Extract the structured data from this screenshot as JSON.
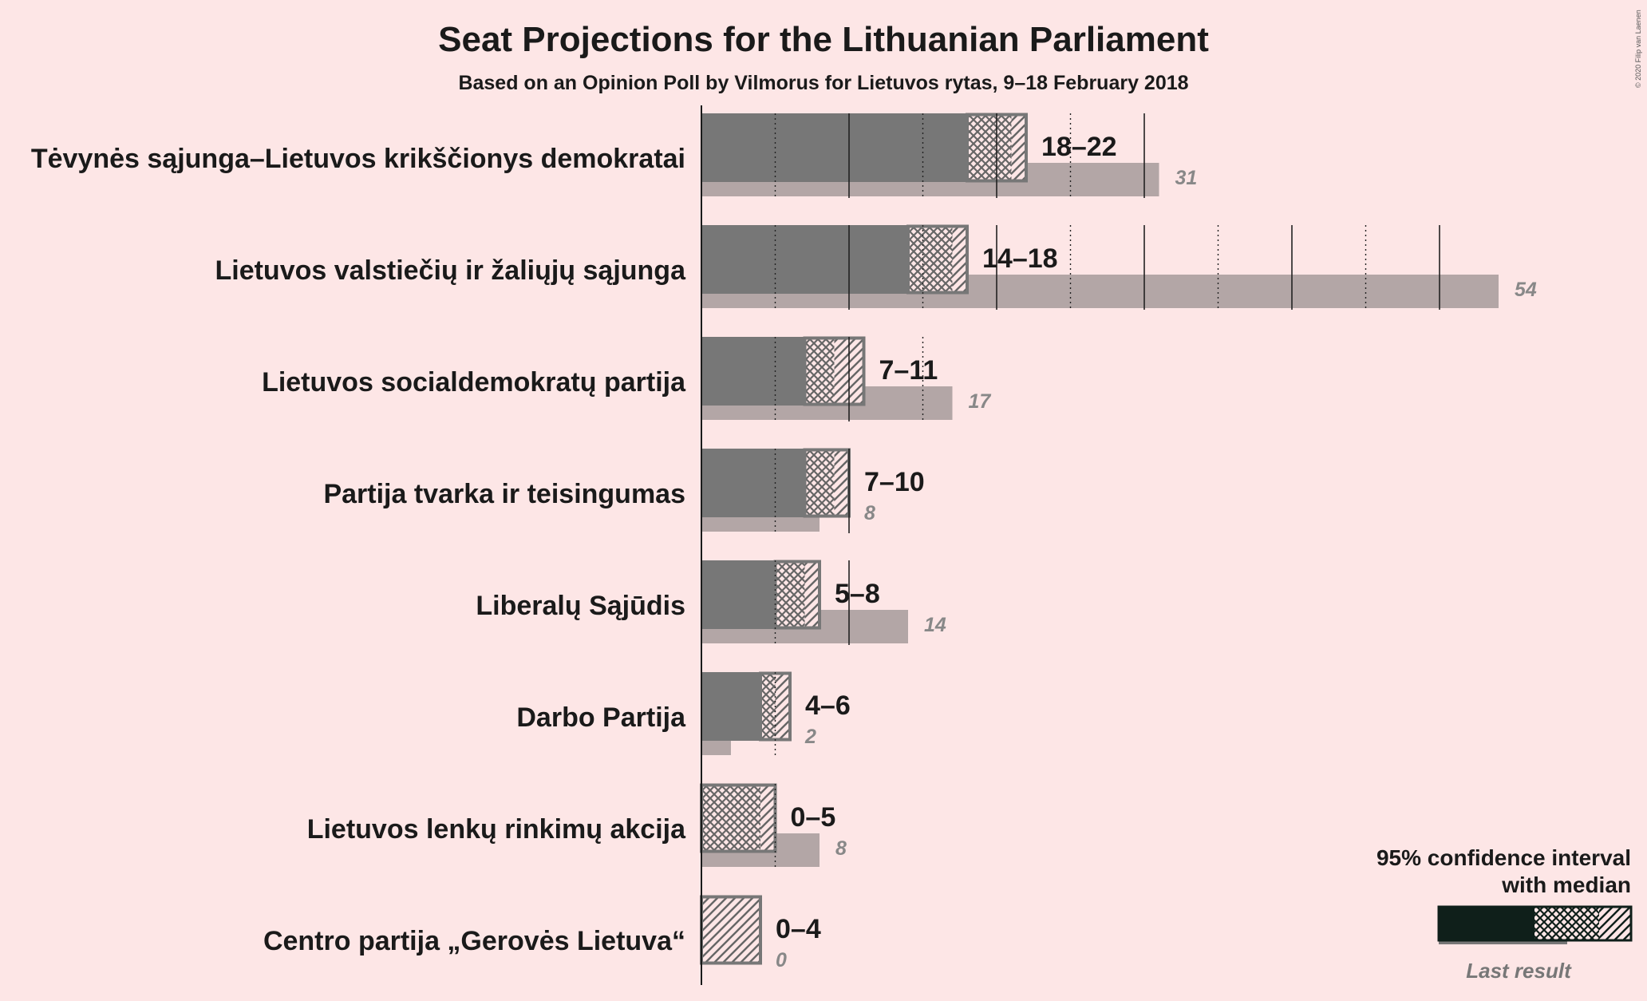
{
  "chart_data": {
    "type": "bar",
    "title": "Seat Projections for the Lithuanian Parliament",
    "subtitle": "Based on an Opinion Poll by Vilmorus for Lietuvos rytas, 9–18 February 2018",
    "copyright": "© 2020 Filip van Laenen",
    "categories": [
      "Tėvynės sąjunga–Lietuvos krikščionys demokratai",
      "Lietuvos valstiečių ir žaliųjų sąjunga",
      "Lietuvos socialdemokratų partija",
      "Partija tvarka ir teisingumas",
      "Liberalų Sąjūdis",
      "Darbo Partija",
      "Lietuvos lenkų rinkimų akcija",
      "Centro partija „Gerovės Lietuva“"
    ],
    "range_labels": [
      "18–22",
      "14–18",
      "7–11",
      "7–10",
      "5–8",
      "4–6",
      "0–5",
      "0–4"
    ],
    "ci_low": [
      18,
      14,
      7,
      7,
      5,
      4,
      0,
      0
    ],
    "median": [
      21,
      17,
      9,
      9,
      7,
      5,
      4,
      0
    ],
    "ci_high": [
      22,
      18,
      11,
      10,
      8,
      6,
      5,
      4
    ],
    "last_result": [
      31,
      54,
      17,
      8,
      14,
      2,
      8,
      0
    ],
    "gridline_step": 5,
    "colors": {
      "background": "#fde6e6",
      "bar": "#777777",
      "last_result": "#b3a6a6",
      "hatch_line": "#666666",
      "legend_dark": "#0f1f1a",
      "text": "#1a1a1a",
      "last_text": "#888888"
    },
    "legend": {
      "title_line1": "95% confidence interval",
      "title_line2": "with median",
      "last_result": "Last result",
      "position": "bottom-right"
    }
  }
}
